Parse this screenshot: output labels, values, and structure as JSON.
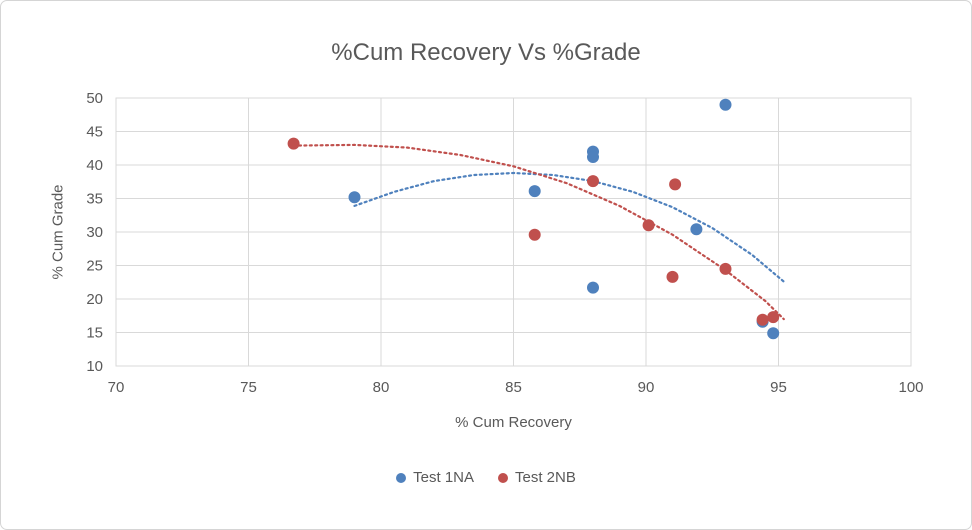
{
  "chart_data": {
    "type": "scatter",
    "title": "%Cum Recovery Vs %Grade",
    "xlabel": "% Cum Recovery",
    "ylabel": "% Cum Grade",
    "xlim": [
      70,
      100
    ],
    "ylim": [
      10,
      50
    ],
    "xticks": [
      70,
      75,
      80,
      85,
      90,
      95,
      100
    ],
    "yticks": [
      10,
      15,
      20,
      25,
      30,
      35,
      40,
      45,
      50
    ],
    "grid": true,
    "legend_position": "bottom",
    "colors": {
      "grid": "#D9D9D9",
      "axis_text": "#595959",
      "title": "#595959",
      "background": "#FFFFFF",
      "border": "#D5D5D5"
    },
    "series": [
      {
        "name": "Test 1NA",
        "color": "#4F81BD",
        "marker": "circle",
        "trend_style": "dotted",
        "points": [
          [
            79,
            35.2
          ],
          [
            85.8,
            36.1
          ],
          [
            88,
            42.0
          ],
          [
            88,
            41.2
          ],
          [
            88,
            21.7
          ],
          [
            91.9,
            30.4
          ],
          [
            93,
            49.0
          ],
          [
            94.4,
            16.6
          ],
          [
            94.8,
            14.9
          ]
        ],
        "trendline": [
          [
            79,
            33.9
          ],
          [
            80.5,
            36.0
          ],
          [
            82,
            37.6
          ],
          [
            83.5,
            38.5
          ],
          [
            85,
            38.8
          ],
          [
            86.5,
            38.5
          ],
          [
            88,
            37.6
          ],
          [
            89.5,
            36.0
          ],
          [
            91,
            33.7
          ],
          [
            92.5,
            30.6
          ],
          [
            94,
            26.6
          ],
          [
            95.2,
            22.6
          ]
        ]
      },
      {
        "name": "Test 2NB",
        "color": "#C0504D",
        "marker": "circle",
        "trend_style": "dotted",
        "points": [
          [
            76.7,
            43.2
          ],
          [
            85.8,
            29.6
          ],
          [
            88,
            37.6
          ],
          [
            90.1,
            31.0
          ],
          [
            91.1,
            37.1
          ],
          [
            91,
            23.3
          ],
          [
            93,
            24.5
          ],
          [
            94.4,
            16.9
          ],
          [
            94.8,
            17.3
          ]
        ],
        "trendline": [
          [
            76.7,
            42.9
          ],
          [
            79,
            43.0
          ],
          [
            81,
            42.6
          ],
          [
            83,
            41.5
          ],
          [
            85,
            39.8
          ],
          [
            87,
            37.3
          ],
          [
            89,
            33.9
          ],
          [
            91,
            29.6
          ],
          [
            93,
            24.3
          ],
          [
            94.5,
            19.7
          ],
          [
            95.2,
            17.0
          ]
        ]
      }
    ]
  }
}
